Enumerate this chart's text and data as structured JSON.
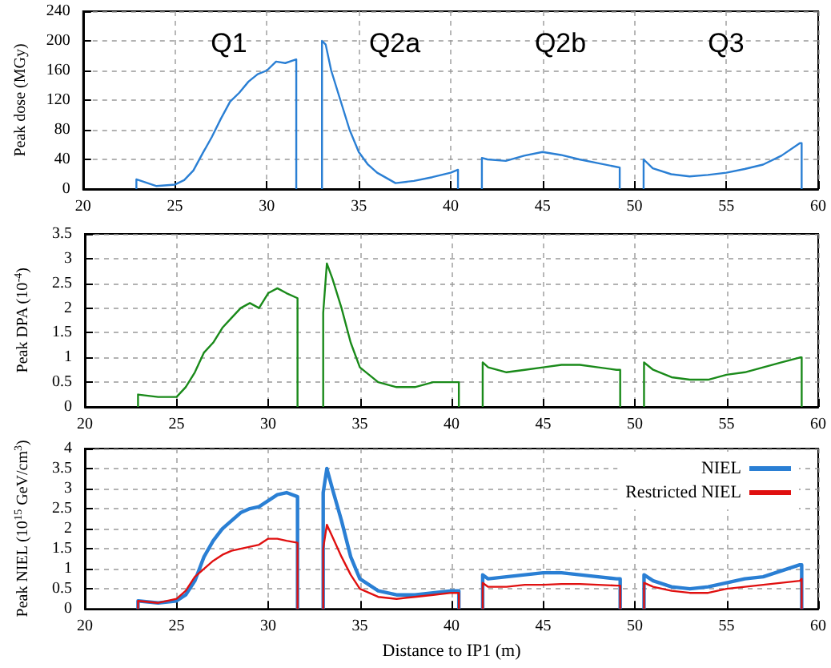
{
  "chart_data": [
    {
      "type": "line",
      "ylabel": "Peak dose (MGy)",
      "xlim": [
        20,
        60
      ],
      "xticks": [
        20,
        25,
        30,
        35,
        40,
        45,
        50,
        55,
        60
      ],
      "ylim": [
        0,
        240
      ],
      "yticks": [
        0,
        40,
        80,
        120,
        160,
        200,
        240
      ],
      "grid": true,
      "legend": false,
      "annotations": [
        "Q1",
        "Q2a",
        "Q2b",
        "Q3"
      ],
      "x": [
        22.9,
        22.9,
        24,
        25,
        25.5,
        26,
        26.5,
        27,
        27.5,
        28,
        28.5,
        29,
        29.5,
        30,
        30.5,
        31,
        31.6,
        31.6,
        32.3,
        33,
        33,
        33.2,
        33.5,
        34,
        34.5,
        35,
        35.5,
        36,
        37,
        38,
        39,
        40,
        40.4,
        40.4,
        41,
        41.7,
        41.7,
        42,
        43,
        44,
        45,
        46,
        47,
        48,
        49,
        49.2,
        49.2,
        49.8,
        50.5,
        50.5,
        51,
        52,
        53,
        54,
        55,
        56,
        57,
        58,
        59,
        59.1,
        59.1
      ],
      "series": [
        {
          "color": "#2a7fd4",
          "values": [
            0,
            13,
            4,
            6,
            12,
            25,
            48,
            70,
            95,
            118,
            130,
            145,
            155,
            160,
            172,
            170,
            175,
            0,
            null,
            0,
            200,
            195,
            160,
            120,
            80,
            50,
            33,
            22,
            8,
            11,
            16,
            22,
            26,
            0,
            null,
            0,
            42,
            40,
            38,
            45,
            50,
            46,
            40,
            35,
            30,
            29,
            0,
            null,
            0,
            40,
            28,
            20,
            17,
            19,
            22,
            27,
            33,
            45,
            62,
            62,
            0
          ]
        }
      ]
    },
    {
      "type": "line",
      "ylabel": "Peak DPA (10$^{-4}$)",
      "xlim": [
        20,
        60
      ],
      "xticks": [
        20,
        25,
        30,
        35,
        40,
        45,
        50,
        55,
        60
      ],
      "ylim": [
        0,
        3.5
      ],
      "yticks": [
        0,
        0.5,
        1,
        1.5,
        2,
        2.5,
        3,
        3.5
      ],
      "grid": true,
      "legend": false,
      "x": [
        22.9,
        22.9,
        24,
        25,
        25.5,
        26,
        26.5,
        27,
        27.5,
        28,
        28.5,
        29,
        29.5,
        30,
        30.5,
        31,
        31.6,
        31.6,
        32.3,
        33,
        33,
        33.2,
        33.5,
        34,
        34.5,
        35,
        35.5,
        36,
        37,
        38,
        39,
        40,
        40.4,
        40.4,
        41,
        41.7,
        41.7,
        42,
        43,
        44,
        45,
        46,
        47,
        48,
        49,
        49.2,
        49.2,
        49.8,
        50.5,
        50.5,
        51,
        52,
        53,
        54,
        55,
        56,
        57,
        58,
        59,
        59.1,
        59.1
      ],
      "series": [
        {
          "color": "#1a8a1a",
          "values": [
            0,
            0.25,
            0.2,
            0.2,
            0.4,
            0.7,
            1.1,
            1.3,
            1.6,
            1.8,
            2.0,
            2.1,
            2.0,
            2.3,
            2.4,
            2.3,
            2.2,
            0,
            null,
            0,
            1.9,
            2.9,
            2.6,
            2.0,
            1.3,
            0.8,
            0.65,
            0.5,
            0.4,
            0.4,
            0.5,
            0.5,
            0.5,
            0,
            null,
            0,
            0.9,
            0.8,
            0.7,
            0.75,
            0.8,
            0.85,
            0.85,
            0.8,
            0.75,
            0.75,
            0,
            null,
            0,
            0.9,
            0.75,
            0.6,
            0.55,
            0.55,
            0.65,
            0.7,
            0.8,
            0.9,
            1.0,
            1.0,
            0
          ]
        }
      ]
    },
    {
      "type": "line",
      "ylabel": "Peak NIEL (10$^{15}$ GeV/cm$^{3}$)",
      "xlabel": "Distance to IP1 (m)",
      "xlim": [
        20,
        60
      ],
      "xticks": [
        20,
        25,
        30,
        35,
        40,
        45,
        50,
        55,
        60
      ],
      "ylim": [
        0,
        4
      ],
      "yticks": [
        0,
        0.5,
        1,
        1.5,
        2,
        2.5,
        3,
        3.5,
        4
      ],
      "grid": true,
      "legend": "top right",
      "x": [
        22.9,
        22.9,
        24,
        25,
        25.5,
        26,
        26.5,
        27,
        27.5,
        28,
        28.5,
        29,
        29.5,
        30,
        30.5,
        31,
        31.6,
        31.6,
        32.3,
        33,
        33,
        33.2,
        33.5,
        34,
        34.5,
        35,
        35.5,
        36,
        37,
        38,
        39,
        40,
        40.4,
        40.4,
        41,
        41.7,
        41.7,
        42,
        43,
        44,
        45,
        46,
        47,
        48,
        49,
        49.2,
        49.2,
        49.8,
        50.5,
        50.5,
        51,
        52,
        53,
        54,
        55,
        56,
        57,
        58,
        59,
        59.1,
        59.1
      ],
      "series": [
        {
          "name": "NIEL",
          "color": "#2a7fd4",
          "values": [
            0,
            0.2,
            0.15,
            0.2,
            0.35,
            0.7,
            1.3,
            1.7,
            2.0,
            2.2,
            2.4,
            2.5,
            2.55,
            2.7,
            2.85,
            2.9,
            2.8,
            0,
            null,
            0,
            2.9,
            3.5,
            3.0,
            2.2,
            1.3,
            0.75,
            0.6,
            0.45,
            0.35,
            0.35,
            0.4,
            0.45,
            0.45,
            0,
            null,
            0,
            0.85,
            0.75,
            0.8,
            0.85,
            0.9,
            0.9,
            0.85,
            0.8,
            0.75,
            0.75,
            0,
            null,
            0,
            0.85,
            0.7,
            0.55,
            0.5,
            0.55,
            0.65,
            0.75,
            0.8,
            0.95,
            1.1,
            1.1,
            0
          ]
        },
        {
          "name": "Restricted NIEL",
          "color": "#e01010",
          "values": [
            0,
            0.2,
            0.15,
            0.25,
            0.45,
            0.8,
            1.0,
            1.2,
            1.35,
            1.45,
            1.5,
            1.55,
            1.6,
            1.75,
            1.75,
            1.7,
            1.65,
            0,
            null,
            0,
            1.5,
            2.1,
            1.8,
            1.3,
            0.85,
            0.5,
            0.4,
            0.3,
            0.25,
            0.3,
            0.35,
            0.4,
            0.4,
            0,
            null,
            0,
            0.65,
            0.55,
            0.55,
            0.6,
            0.6,
            0.62,
            0.62,
            0.6,
            0.58,
            0.58,
            0,
            null,
            0,
            0.65,
            0.55,
            0.45,
            0.4,
            0.4,
            0.5,
            0.55,
            0.6,
            0.65,
            0.7,
            0.75,
            0
          ]
        }
      ]
    }
  ]
}
